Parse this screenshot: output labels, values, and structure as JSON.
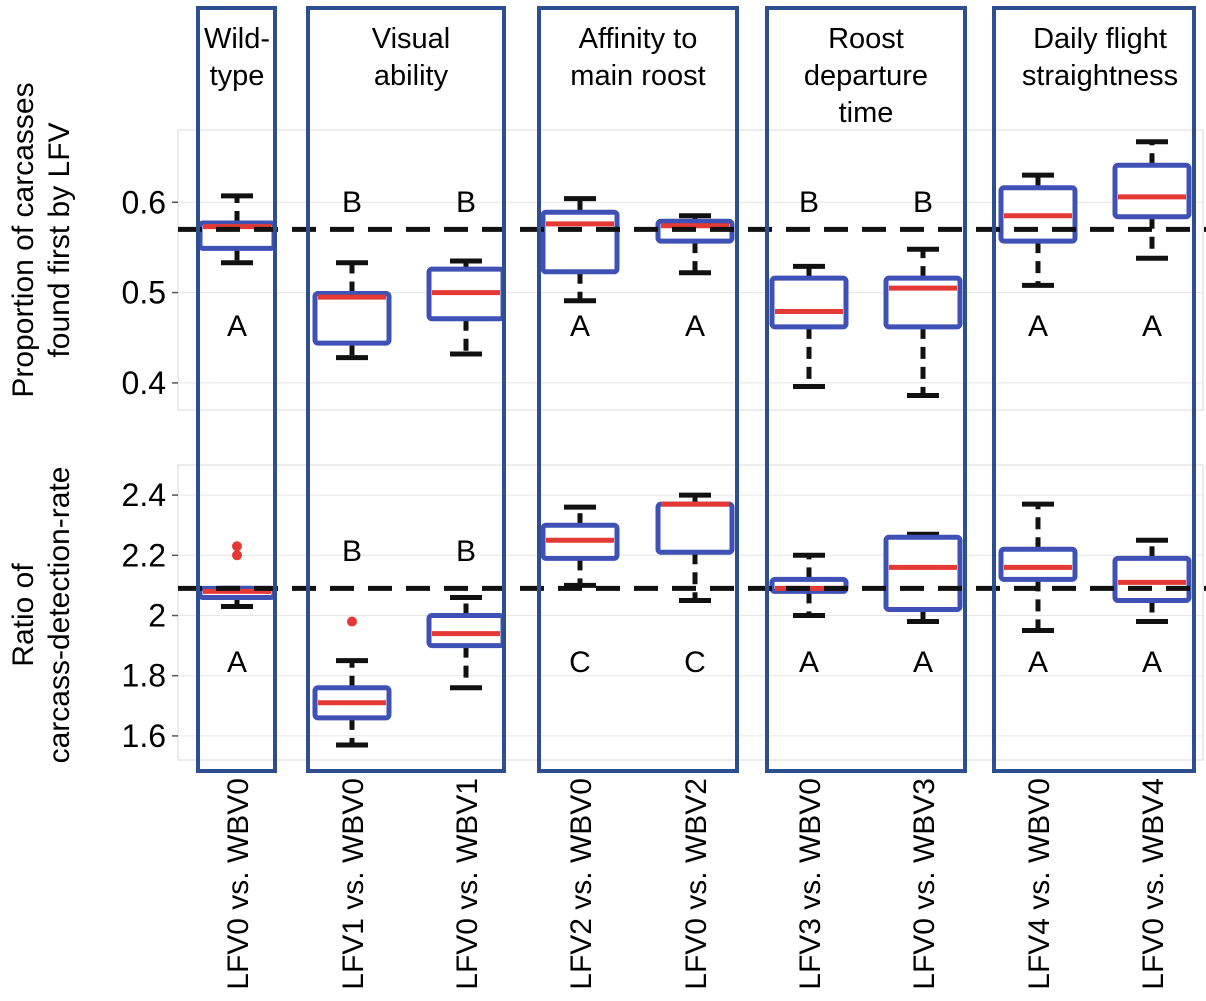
{
  "chart_data": {
    "type": "boxplot",
    "groups": [
      {
        "label": "Wild-\ntype",
        "comparisons": [
          0
        ]
      },
      {
        "label": "Visual\nability",
        "comparisons": [
          1,
          2
        ]
      },
      {
        "label": "Affinity to\nmain roost",
        "comparisons": [
          3,
          4
        ]
      },
      {
        "label": "Roost\ndeparture\ntime",
        "comparisons": [
          5,
          6
        ]
      },
      {
        "label": "Daily flight\nstraightness",
        "comparisons": [
          7,
          8
        ]
      }
    ],
    "categories": [
      "LFV0 vs. WBV0",
      "LFV1 vs. WBV0",
      "LFV0 vs. WBV1",
      "LFV2 vs. WBV0",
      "LFV0 vs. WBV2",
      "LFV3 vs. WBV0",
      "LFV0 vs. WBV3",
      "LFV4 vs. WBV0",
      "LFV0 vs. WBV4"
    ],
    "panels": [
      {
        "ylabel": "Proportion of carcasses\nfound first by LFV",
        "ylim": [
          0.37,
          0.68
        ],
        "yticks": [
          0.4,
          0.5,
          0.6
        ],
        "ytick_labels": [
          "0.4",
          "0.5",
          "0.6"
        ],
        "reference_line": 0.57,
        "boxes": [
          {
            "whisker_low": 0.533,
            "q1": 0.549,
            "median": 0.573,
            "q3": 0.577,
            "whisker_high": 0.607,
            "outliers": []
          },
          {
            "whisker_low": 0.428,
            "q1": 0.444,
            "median": 0.495,
            "q3": 0.499,
            "whisker_high": 0.533,
            "outliers": []
          },
          {
            "whisker_low": 0.432,
            "q1": 0.471,
            "median": 0.5,
            "q3": 0.526,
            "whisker_high": 0.535,
            "outliers": []
          },
          {
            "whisker_low": 0.491,
            "q1": 0.523,
            "median": 0.576,
            "q3": 0.589,
            "whisker_high": 0.604,
            "outliers": []
          },
          {
            "whisker_low": 0.522,
            "q1": 0.557,
            "median": 0.574,
            "q3": 0.579,
            "whisker_high": 0.585,
            "outliers": []
          },
          {
            "whisker_low": 0.396,
            "q1": 0.462,
            "median": 0.479,
            "q3": 0.516,
            "whisker_high": 0.529,
            "outliers": []
          },
          {
            "whisker_low": 0.386,
            "q1": 0.462,
            "median": 0.505,
            "q3": 0.516,
            "whisker_high": 0.548,
            "outliers": []
          },
          {
            "whisker_low": 0.508,
            "q1": 0.557,
            "median": 0.585,
            "q3": 0.616,
            "whisker_high": 0.63,
            "outliers": []
          },
          {
            "whisker_low": 0.538,
            "q1": 0.584,
            "median": 0.606,
            "q3": 0.641,
            "whisker_high": 0.667,
            "outliers": []
          }
        ],
        "letters_top": [
          "",
          "B",
          "B",
          "",
          "",
          "B",
          "B",
          "",
          ""
        ],
        "letters_bottom": [
          "A",
          "",
          "",
          "A",
          "A",
          "",
          "",
          "A",
          "A"
        ]
      },
      {
        "ylabel": "Ratio of\ncarcass-detection-rate",
        "ylim": [
          1.52,
          2.5
        ],
        "yticks": [
          1.6,
          1.8,
          2,
          2.2,
          2.4
        ],
        "ytick_labels": [
          "1.6",
          "1.8",
          "2",
          "2.2",
          "2.4"
        ],
        "reference_line": 2.09,
        "boxes": [
          {
            "whisker_low": 2.03,
            "q1": 2.06,
            "median": 2.08,
            "q3": 2.09,
            "whisker_high": 2.09,
            "outliers": [
              2.2,
              2.23
            ]
          },
          {
            "whisker_low": 1.57,
            "q1": 1.66,
            "median": 1.71,
            "q3": 1.76,
            "whisker_high": 1.85,
            "outliers": [
              1.98
            ]
          },
          {
            "whisker_low": 1.76,
            "q1": 1.9,
            "median": 1.94,
            "q3": 2.0,
            "whisker_high": 2.06,
            "outliers": []
          },
          {
            "whisker_low": 2.1,
            "q1": 2.19,
            "median": 2.25,
            "q3": 2.3,
            "whisker_high": 2.36,
            "outliers": []
          },
          {
            "whisker_low": 2.05,
            "q1": 2.21,
            "median": 2.37,
            "q3": 2.37,
            "whisker_high": 2.4,
            "outliers": []
          },
          {
            "whisker_low": 2.0,
            "q1": 2.08,
            "median": 2.09,
            "q3": 2.12,
            "whisker_high": 2.2,
            "outliers": []
          },
          {
            "whisker_low": 1.98,
            "q1": 2.02,
            "median": 2.16,
            "q3": 2.26,
            "whisker_high": 2.27,
            "outliers": []
          },
          {
            "whisker_low": 1.95,
            "q1": 2.12,
            "median": 2.16,
            "q3": 2.22,
            "whisker_high": 2.37,
            "outliers": []
          },
          {
            "whisker_low": 1.98,
            "q1": 2.05,
            "median": 2.11,
            "q3": 2.19,
            "whisker_high": 2.25,
            "outliers": []
          }
        ],
        "letters_top": [
          "",
          "B",
          "B",
          "",
          "",
          "",
          "",
          "",
          ""
        ],
        "letters_bottom": [
          "A",
          "",
          "",
          "C",
          "C",
          "A",
          "A",
          "A",
          "A"
        ]
      }
    ],
    "colors": {
      "box": "#3f51b5",
      "median": "#e53935",
      "whisker": "#111111",
      "frame": "#2e4f8f",
      "outlier": "#e53935",
      "grid": "#d9d9d9"
    }
  }
}
